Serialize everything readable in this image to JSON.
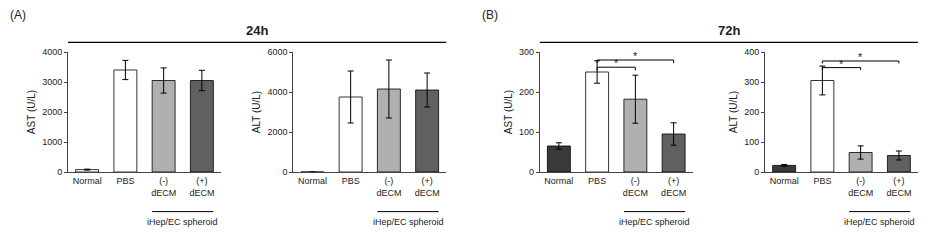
{
  "chart_data": [
    {
      "type": "bar",
      "title": "24h",
      "ylabel": "AST (U/L)",
      "categories": [
        "Normal",
        "PBS",
        "(-)\ndECM",
        "(+)\ndECM"
      ],
      "values": [
        80,
        3400,
        3050,
        3050
      ],
      "errors": [
        15,
        320,
        420,
        340
      ],
      "colors": [
        "white",
        "white",
        "#b0b0b0",
        "#606060"
      ],
      "ylim": [
        0,
        4000
      ],
      "yticks": [
        0,
        1000,
        2000,
        3000,
        4000
      ],
      "grid": false,
      "annotations": [
        {
          "text": "(A)"
        },
        {
          "text": "iHep/EC spheroid",
          "categories": [
            "(-)\ndECM",
            "(+)\ndECM"
          ]
        }
      ]
    },
    {
      "type": "bar",
      "ylabel": "ALT (U/L)",
      "categories": [
        "Normal",
        "PBS",
        "(-)\ndECM",
        "(+)\ndECM"
      ],
      "values": [
        0,
        3750,
        4150,
        4100
      ],
      "errors": [
        0,
        1300,
        1450,
        850
      ],
      "colors": [
        "white",
        "white",
        "#b0b0b0",
        "#606060"
      ],
      "ylim": [
        0,
        6000
      ],
      "yticks": [
        0,
        2000,
        4000,
        6000
      ],
      "grid": false,
      "annotations": [
        {
          "text": "iHep/EC spheroid",
          "categories": [
            "(-)\ndECM",
            "(+)\ndECM"
          ]
        }
      ]
    },
    {
      "type": "bar",
      "title": "72h",
      "ylabel": "AST (U/L)",
      "categories": [
        "Normal",
        "PBS",
        "(-)\ndECM",
        "(+)\ndECM"
      ],
      "values": [
        65,
        250,
        182,
        95
      ],
      "errors": [
        8,
        28,
        60,
        28
      ],
      "colors": [
        "#3a3a3a",
        "white",
        "#b0b0b0",
        "#606060"
      ],
      "ylim": [
        0,
        300
      ],
      "yticks": [
        0,
        100,
        200,
        300
      ],
      "grid": false,
      "annotations": [
        {
          "text": "(B)"
        },
        {
          "text": "iHep/EC spheroid",
          "categories": [
            "(-)\ndECM",
            "(+)\ndECM"
          ]
        },
        {
          "text": "*",
          "categories": [
            "PBS",
            "(+)\ndECM"
          ],
          "y": 280
        },
        {
          "text": "*",
          "categories": [
            "PBS",
            "(-)\ndECM"
          ],
          "y": 262
        }
      ]
    },
    {
      "type": "bar",
      "ylabel": "ALT (U/L)",
      "categories": [
        "Normal",
        "PBS",
        "(-)\ndECM",
        "(+)\ndECM"
      ],
      "values": [
        22,
        305,
        65,
        55
      ],
      "errors": [
        3,
        48,
        22,
        15
      ],
      "colors": [
        "#3a3a3a",
        "white",
        "#b0b0b0",
        "#606060"
      ],
      "ylim": [
        0,
        400
      ],
      "yticks": [
        0,
        100,
        200,
        300,
        400
      ],
      "grid": false,
      "annotations": [
        {
          "text": "iHep/EC spheroid",
          "categories": [
            "(-)\ndECM",
            "(+)\ndECM"
          ]
        },
        {
          "text": "*",
          "categories": [
            "PBS",
            "(+)\ndECM"
          ],
          "y": 370
        },
        {
          "text": "*",
          "categories": [
            "PBS",
            "(-)\ndECM"
          ],
          "y": 348
        }
      ]
    }
  ]
}
